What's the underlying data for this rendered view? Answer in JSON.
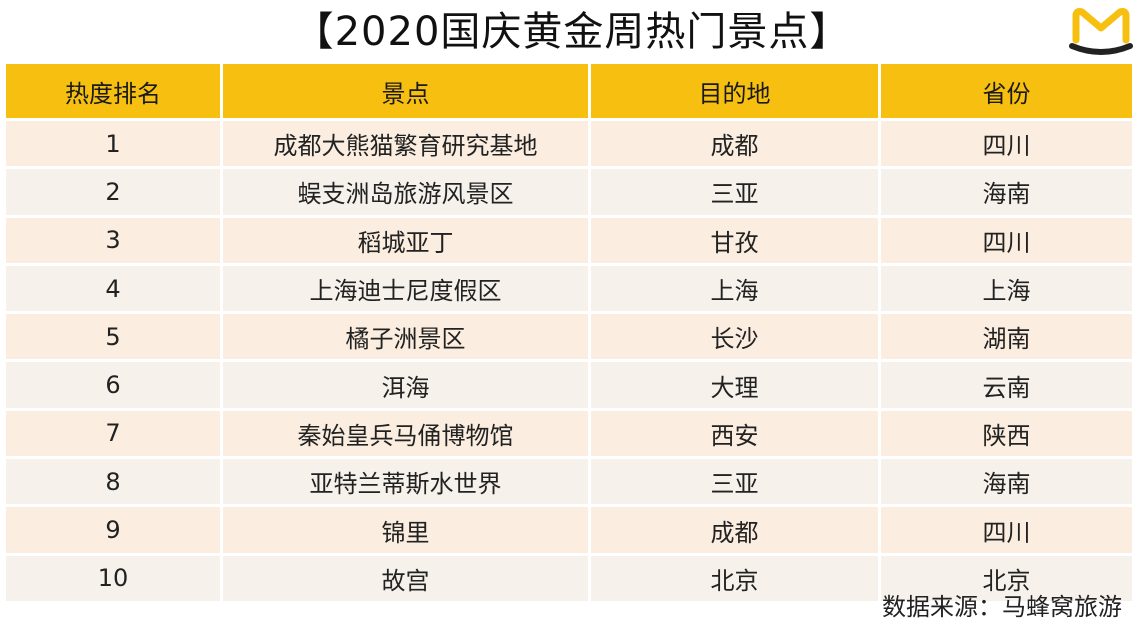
{
  "title": "【2020国庆黄金周热门景点】",
  "colors": {
    "header": "#f7c010",
    "row_odd": "#fbeee0",
    "row_even": "#f6f1ea",
    "logo": "#f7c010"
  },
  "logo_icon": "mafengwo-m-logo-icon",
  "table": {
    "headers": [
      "热度排名",
      "景点",
      "目的地",
      "省份"
    ],
    "rows": [
      [
        "1",
        "成都大熊猫繁育研究基地",
        "成都",
        "四川"
      ],
      [
        "2",
        "蜈支洲岛旅游风景区",
        "三亚",
        "海南"
      ],
      [
        "3",
        "稻城亚丁",
        "甘孜",
        "四川"
      ],
      [
        "4",
        "上海迪士尼度假区",
        "上海",
        "上海"
      ],
      [
        "5",
        "橘子洲景区",
        "长沙",
        "湖南"
      ],
      [
        "6",
        "洱海",
        "大理",
        "云南"
      ],
      [
        "7",
        "秦始皇兵马俑博物馆",
        "西安",
        "陕西"
      ],
      [
        "8",
        "亚特兰蒂斯水世界",
        "三亚",
        "海南"
      ],
      [
        "9",
        "锦里",
        "成都",
        "四川"
      ],
      [
        "10",
        "故宫",
        "北京",
        "北京"
      ]
    ]
  },
  "footer": "数据来源：马蜂窝旅游"
}
